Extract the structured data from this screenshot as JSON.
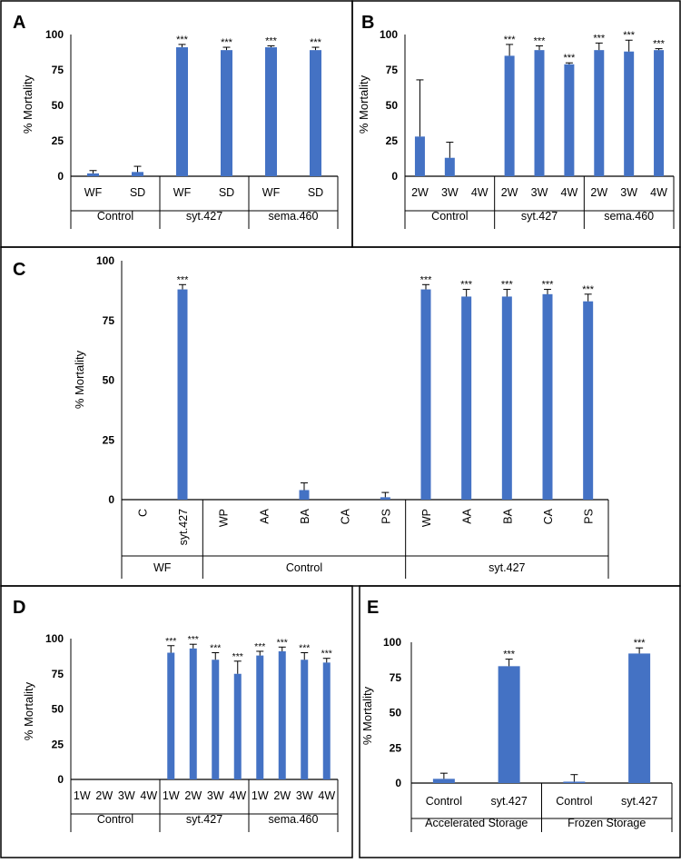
{
  "colors": {
    "bar": "#4472C4",
    "axis": "#000000",
    "border": "#000000",
    "errorbar": "#000000"
  },
  "chart_data": [
    {
      "panel": "A",
      "type": "bar",
      "ylabel": "% Mortality",
      "ylim": [
        0,
        100
      ],
      "yticks": [
        "0",
        "25",
        "50",
        "75",
        "100"
      ],
      "categories": [
        "WF",
        "SD",
        "WF",
        "SD",
        "WF",
        "SD"
      ],
      "values": [
        2,
        3,
        91,
        89,
        91,
        89
      ],
      "errors": [
        2,
        4,
        2,
        2,
        1,
        2
      ],
      "significance": [
        "",
        "",
        "***",
        "***",
        "***",
        "***"
      ],
      "groups": [
        {
          "label": "Control",
          "span": 2
        },
        {
          "label": "syt.427",
          "span": 2
        },
        {
          "label": "sema.460",
          "span": 2
        }
      ]
    },
    {
      "panel": "B",
      "type": "bar",
      "ylabel": "% Mortality",
      "ylim": [
        0,
        100
      ],
      "yticks": [
        "0",
        "25",
        "50",
        "75",
        "100"
      ],
      "categories": [
        "2W",
        "3W",
        "4W",
        "2W",
        "3W",
        "4W",
        "2W",
        "3W",
        "4W"
      ],
      "values": [
        28,
        13,
        0,
        85,
        89,
        79,
        89,
        88,
        89
      ],
      "errors": [
        40,
        11,
        0,
        8,
        3,
        1,
        5,
        8,
        1
      ],
      "significance": [
        "",
        "",
        "",
        "***",
        "***",
        "***",
        "***",
        "***",
        "***"
      ],
      "groups": [
        {
          "label": "Control",
          "span": 3
        },
        {
          "label": "syt.427",
          "span": 3
        },
        {
          "label": "sema.460",
          "span": 3
        }
      ]
    },
    {
      "panel": "C",
      "type": "bar",
      "ylabel": "% Mortality",
      "ylim": [
        0,
        100
      ],
      "yticks": [
        "0",
        "25",
        "50",
        "75",
        "100"
      ],
      "categories": [
        "C",
        "syt.427",
        "WP",
        "AA",
        "BA",
        "CA",
        "PS",
        "WP",
        "AA",
        "BA",
        "CA",
        "PS"
      ],
      "values": [
        0,
        88,
        0,
        0,
        4,
        0,
        1,
        88,
        85,
        85,
        86,
        83
      ],
      "errors": [
        0,
        2,
        0,
        0,
        3,
        0,
        2,
        2,
        3,
        3,
        2,
        3
      ],
      "significance": [
        "",
        "***",
        "",
        "",
        "",
        "",
        "",
        "***",
        "***",
        "***",
        "***",
        "***"
      ],
      "groups": [
        {
          "label": "WF",
          "span": 2
        },
        {
          "label": "Control",
          "span": 5
        },
        {
          "label": "syt.427",
          "span": 5
        }
      ]
    },
    {
      "panel": "D",
      "type": "bar",
      "ylabel": "% Mortality",
      "ylim": [
        0,
        100
      ],
      "yticks": [
        "0",
        "25",
        "50",
        "75",
        "100"
      ],
      "categories": [
        "1W",
        "2W",
        "3W",
        "4W",
        "1W",
        "2W",
        "3W",
        "4W",
        "1W",
        "2W",
        "3W",
        "4W"
      ],
      "values": [
        0,
        0,
        0,
        0,
        90,
        93,
        85,
        75,
        88,
        91,
        85,
        83
      ],
      "errors": [
        0,
        0,
        0,
        0,
        5,
        3,
        5,
        9,
        3,
        3,
        5,
        3
      ],
      "significance": [
        "",
        "",
        "",
        "",
        "***",
        "***",
        "***",
        "***",
        "***",
        "***",
        "***",
        "***"
      ],
      "groups": [
        {
          "label": "Control",
          "span": 4
        },
        {
          "label": "syt.427",
          "span": 4
        },
        {
          "label": "sema.460",
          "span": 4
        }
      ]
    },
    {
      "panel": "E",
      "type": "bar",
      "ylabel": "% Mortality",
      "ylim": [
        0,
        100
      ],
      "yticks": [
        "0",
        "25",
        "50",
        "75",
        "100"
      ],
      "categories": [
        "Control",
        "syt.427",
        "Control",
        "syt.427"
      ],
      "values": [
        3,
        83,
        1,
        92
      ],
      "errors": [
        4,
        5,
        5,
        4
      ],
      "significance": [
        "",
        "***",
        "",
        "***"
      ],
      "groups": [
        {
          "label": "Accelerated Storage",
          "span": 2
        },
        {
          "label": "Frozen Storage",
          "span": 2
        }
      ]
    }
  ]
}
